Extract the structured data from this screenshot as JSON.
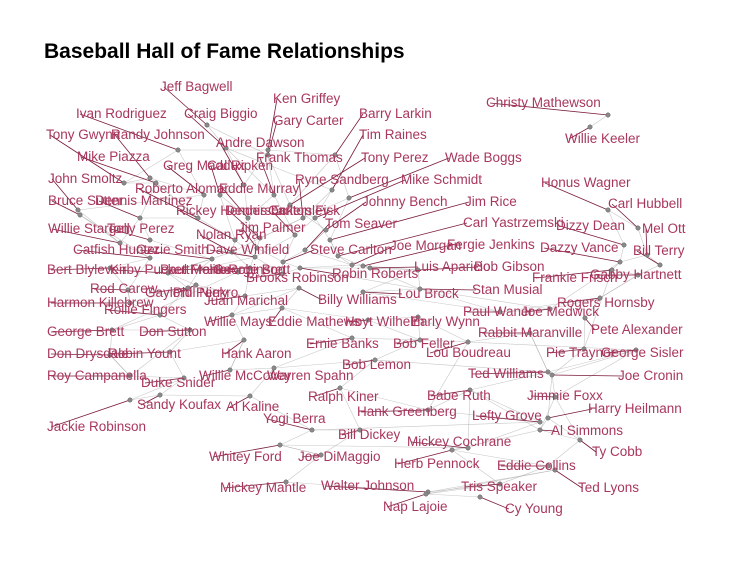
{
  "title": "Baseball Hall of Fame Relationships",
  "colors": {
    "label": "#a8375c",
    "edge": "#9a9a9a",
    "node": "#8a8a8a",
    "leader": "#7a1a3c"
  },
  "players": [
    "Jeff Bagwell",
    "Ken Griffey",
    "Ivan Rodriguez",
    "Craig Biggio",
    "Barry Larkin",
    "Gary Carter",
    "Tony Gwynn",
    "Randy Johnson",
    "Tim Raines",
    "Andre Dawson",
    "Mike Piazza",
    "Frank Thomas",
    "Tony Perez",
    "Wade Boggs",
    "Greg Maddux",
    "Cal Ripken",
    "John Smoltz",
    "Roberto Alomar",
    "Eddie Murray",
    "Ryne Sandberg",
    "Mike Schmidt",
    "Bruce Sutter",
    "Dennis Martinez",
    "Johnny Bench",
    "Jim Rice",
    "Rickey Henderson",
    "Dennis Eckersley",
    "Carlton Fisk",
    "Willie Stargell",
    "Tony Perez",
    "Tom Seaver",
    "Carl Yastrzemski",
    "Nolan Ryan",
    "Jim Palmer",
    "Catfish Hunter",
    "Ozzie Smith",
    "Dave Winfield",
    "Steve Carlton",
    "Joe Morgan",
    "Fergie Jenkins",
    "Bert Blyleven",
    "Kirby Puckett",
    "Paul Molitor",
    "George Brett",
    "Frank Robinson",
    "Brooks Robinson",
    "Robin Roberts",
    "Luis Aparicio",
    "Bob Gibson",
    "Rod Carew",
    "Gaylord Perry",
    "Phil Niekro",
    "Juan Marichal",
    "Harmon Killebrew",
    "Rollie Fingers",
    "Lou Brock",
    "Stan Musial",
    "Billy Williams",
    "Willie Mays",
    "Eddie Mathews",
    "Hoyt Wilhelm",
    "Early Wynn",
    "Paul Waner",
    "Joe Medwick",
    "Rogers Hornsby",
    "George Brett",
    "Don Sutton",
    "Ernie Banks",
    "Bob Feller",
    "Don Drysdale",
    "Robin Yount",
    "Hank Aaron",
    "Lou Boudreau",
    "Rabbit Maranville",
    "Pete Alexander",
    "Roy Campanella",
    "Duke Snider",
    "Willie McCovey",
    "Warren Spahn",
    "Bob Lemon",
    "Ted Williams",
    "Pie Traynor",
    "George Sisler",
    "Joe Cronin",
    "Sandy Koufax",
    "Al Kaline",
    "Ralph Kiner",
    "Babe Ruth",
    "Jimmie Foxx",
    "Hank Greenberg",
    "Lefty Grove",
    "Harry Heilmann",
    "Jackie Robinson",
    "Yogi Berra",
    "Bill Dickey",
    "Mickey Cochrane",
    "Al Simmons",
    "Ty Cobb",
    "Whitey Ford",
    "Joe DiMaggio",
    "Herb Pennock",
    "Eddie Collins",
    "Mickey Mantle",
    "Walter Johnson",
    "Tris Speaker",
    "Ted Lyons",
    "Nap Lajoie",
    "Cy Young",
    "Christy Mathewson",
    "Willie Keeler",
    "Honus Wagner",
    "Carl Hubbell",
    "Dizzy Dean",
    "Mel Ott",
    "Dazzy Vance",
    "Bill Terry",
    "Frankie Frisch",
    "Gabby Hartnett"
  ]
}
